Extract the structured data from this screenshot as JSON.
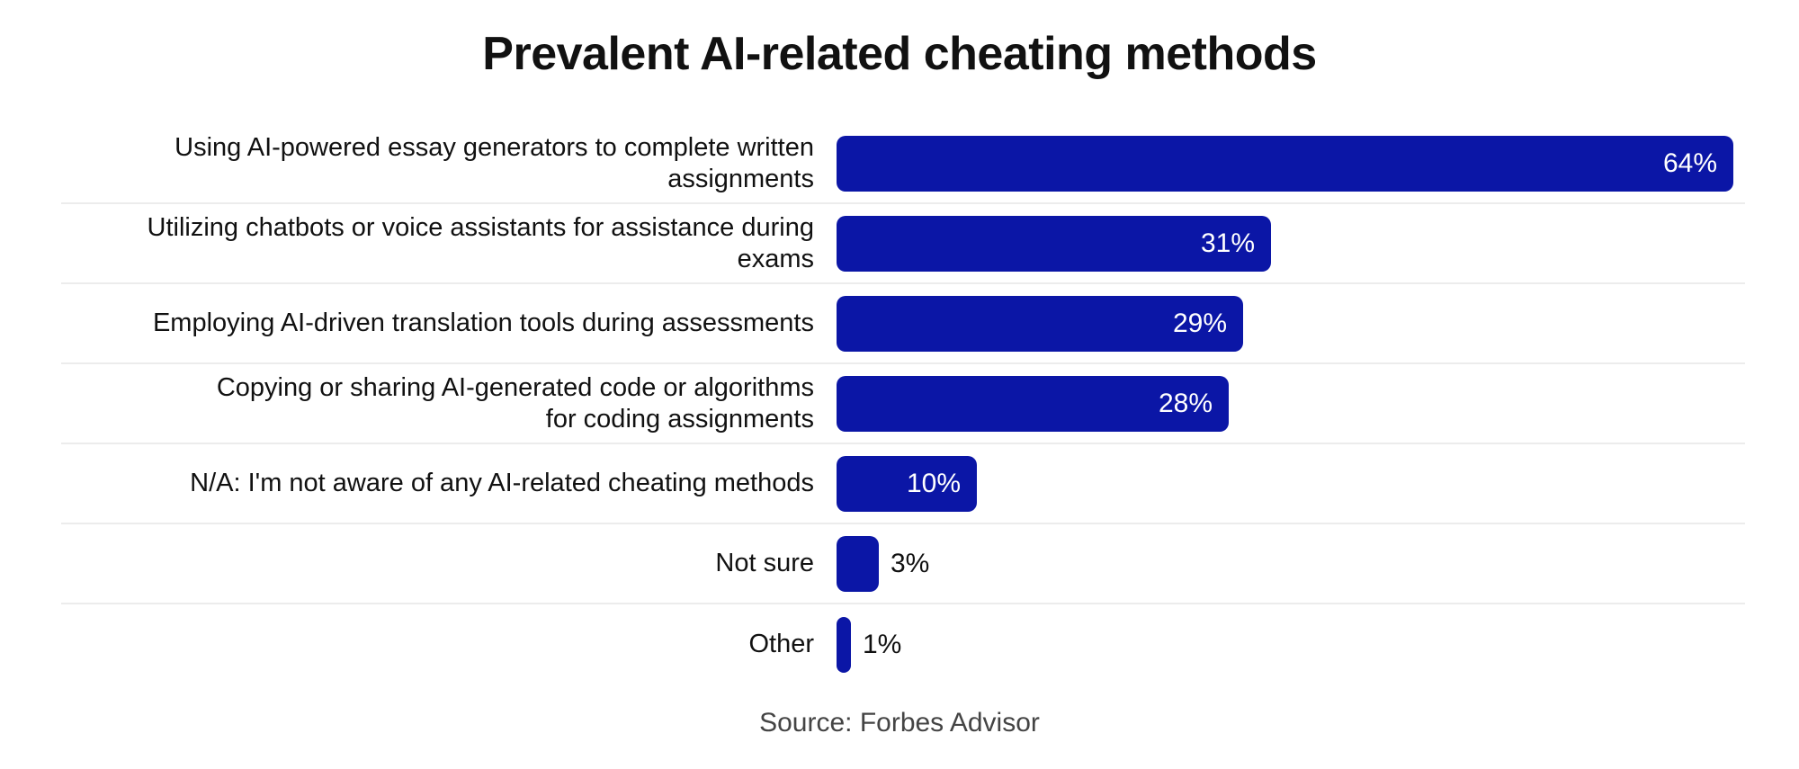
{
  "title": "Prevalent AI-related cheating methods",
  "source": "Source: Forbes Advisor",
  "colors": {
    "bar": "#0b16a6",
    "separator": "#ececec",
    "title_text": "#111111",
    "label_text": "#111111",
    "value_inside_text": "#ffffff",
    "value_outside_text": "#111111",
    "source_text": "#444444",
    "background": "#ffffff"
  },
  "chart_data": {
    "type": "bar",
    "orientation": "horizontal",
    "title": "Prevalent AI-related cheating methods",
    "categories": [
      "Using AI-powered essay generators to complete written\nassignments",
      "Utilizing chatbots or voice assistants for assistance during\nexams",
      "Employing AI-driven translation tools during assessments",
      "Copying or sharing AI-generated code or algorithms\nfor coding assignments",
      "N/A: I'm not aware of any AI-related cheating methods",
      "Not sure",
      "Other"
    ],
    "values": [
      64,
      31,
      29,
      28,
      10,
      3,
      1
    ],
    "value_labels": [
      "64%",
      "31%",
      "29%",
      "28%",
      "10%",
      "3%",
      "1%"
    ],
    "unit": "%",
    "xlim": [
      0,
      64.8
    ],
    "grid": false,
    "legend": false,
    "value_label_position_rule": "inside bar when value >= 10, otherwise outside right of bar",
    "source": "Source: Forbes Advisor"
  }
}
